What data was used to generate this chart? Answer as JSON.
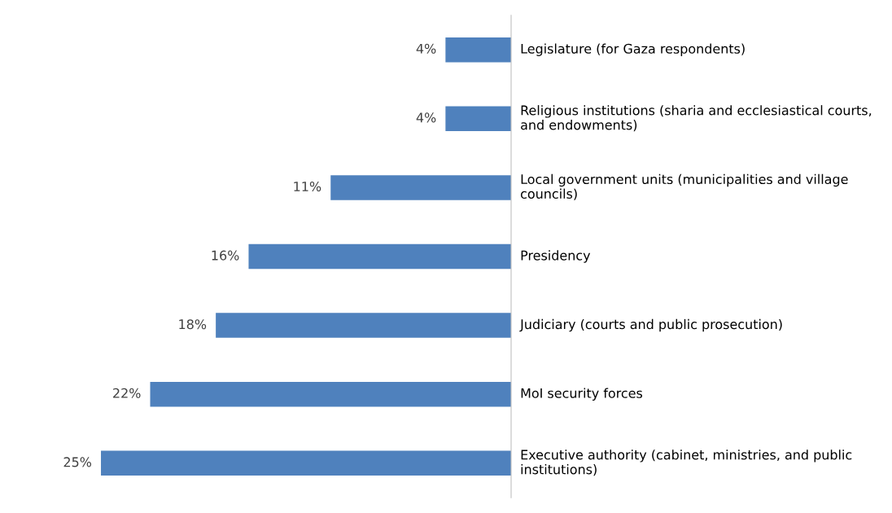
{
  "chart_data": {
    "type": "bar",
    "orientation": "horizontal",
    "categories": [
      "Legislature (for Gaza respondents)",
      "Religious institutions (sharia and ecclesiastical courts, and endowments)",
      "Local government units (municipalities and village councils)",
      "Presidency",
      "Judiciary (courts and public prosecution)",
      "MoI security forces",
      "Executive authority (cabinet, ministries, and public institutions)"
    ],
    "values": [
      4,
      4,
      11,
      16,
      18,
      22,
      25
    ],
    "value_labels": [
      "4%",
      "4%",
      "11%",
      "16%",
      "18%",
      "22%",
      "25%"
    ],
    "color": "#4f81bd",
    "tick_labels": "y"
  }
}
